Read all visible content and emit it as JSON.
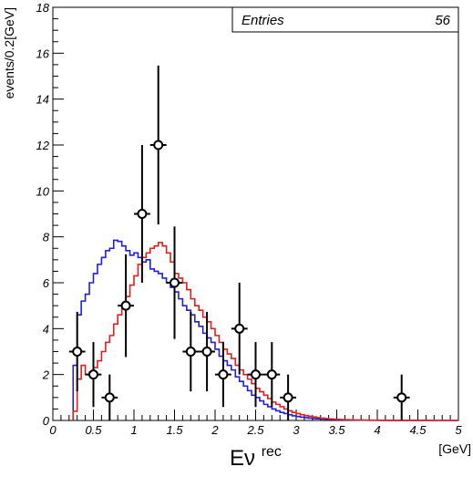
{
  "chart_data": {
    "type": "histogram",
    "xlabel_main": "Eν",
    "xlabel_sup": "rec",
    "xunit": "[GeV]",
    "ylabel": "events/0.2[GeV]",
    "xlim": [
      0,
      5
    ],
    "ylim": [
      0,
      18
    ],
    "x_ticks": [
      0,
      0.5,
      1,
      1.5,
      2,
      2.5,
      3,
      3.5,
      4,
      4.5,
      5
    ],
    "x_tick_labels": [
      "0",
      "0.5",
      "1",
      "1.5",
      "2",
      "2.5",
      "3",
      "3.5",
      "4",
      "4.5",
      "5"
    ],
    "y_ticks": [
      0,
      2,
      4,
      6,
      8,
      10,
      12,
      14,
      16,
      18
    ],
    "y_tick_labels": [
      "0",
      "2",
      "4",
      "6",
      "8",
      "10",
      "12",
      "14",
      "16",
      "18"
    ],
    "grid": false,
    "stats_box": {
      "label": "Entries",
      "value": "56"
    },
    "data_points": {
      "x": [
        0.3,
        0.5,
        0.7,
        0.9,
        1.1,
        1.3,
        1.5,
        1.7,
        1.9,
        2.1,
        2.3,
        2.5,
        2.7,
        2.9,
        4.3
      ],
      "y": [
        3,
        2,
        1,
        5,
        9,
        12,
        6,
        3,
        3,
        2,
        4,
        2,
        2,
        1,
        1
      ],
      "xerr": 0.1,
      "color": "#000000"
    },
    "series": [
      {
        "color": "#1f1fdc",
        "bin_width": 0.05,
        "x": [
          0.25,
          0.3,
          0.35,
          0.4,
          0.45,
          0.5,
          0.55,
          0.6,
          0.65,
          0.7,
          0.75,
          0.8,
          0.85,
          0.9,
          0.95,
          1.0,
          1.05,
          1.1,
          1.15,
          1.2,
          1.25,
          1.3,
          1.35,
          1.4,
          1.45,
          1.5,
          1.55,
          1.6,
          1.65,
          1.7,
          1.75,
          1.8,
          1.85,
          1.9,
          1.95,
          2.0,
          2.05,
          2.1,
          2.15,
          2.2,
          2.25,
          2.3,
          2.35,
          2.4,
          2.45,
          2.5,
          2.55,
          2.6,
          2.65,
          2.7,
          2.75,
          2.8,
          2.85,
          2.9,
          2.95,
          3.0,
          3.05,
          3.1,
          3.15,
          3.2,
          3.25,
          3.3,
          3.35,
          3.4,
          3.45,
          3.5,
          3.55,
          3.6,
          3.65,
          3.7,
          3.75,
          3.8,
          3.85,
          3.9,
          3.95,
          4.0,
          4.05,
          4.1,
          4.15,
          4.2,
          4.25,
          4.3,
          4.35,
          4.4,
          4.45,
          4.5,
          4.55,
          4.6,
          4.65,
          4.7,
          4.75,
          4.8,
          4.85,
          4.9,
          4.95
        ],
        "y": [
          2.4,
          4.6,
          5.2,
          5.5,
          6.0,
          6.4,
          6.8,
          7.1,
          7.4,
          7.5,
          7.85,
          7.8,
          7.6,
          7.4,
          7.2,
          7.3,
          7.1,
          6.9,
          7.0,
          6.6,
          6.5,
          6.4,
          6.2,
          6.0,
          5.8,
          5.6,
          5.3,
          5.0,
          4.8,
          4.6,
          4.3,
          4.1,
          3.8,
          3.6,
          3.4,
          3.1,
          2.8,
          2.6,
          2.4,
          2.2,
          1.9,
          1.7,
          1.5,
          1.3,
          1.1,
          1.0,
          0.85,
          0.7,
          0.6,
          0.5,
          0.42,
          0.35,
          0.3,
          0.25,
          0.2,
          0.17,
          0.14,
          0.12,
          0.1,
          0.08,
          0.07,
          0.06,
          0.05,
          0.04,
          0.035,
          0.03,
          0.025,
          0.02,
          0.02,
          0.015,
          0.012,
          0.01,
          0.01,
          0.008,
          0.006,
          0.005,
          0.004,
          0.003,
          0.003,
          0.002,
          0.002,
          0.002,
          0.001,
          0.001,
          0.001,
          0.001,
          0.001,
          0.0,
          0.0,
          0.0,
          0.0,
          0.0,
          0.0,
          0.0,
          0.0
        ]
      },
      {
        "color": "#dc1f1f",
        "bin_width": 0.05,
        "x": [
          0.25,
          0.3,
          0.35,
          0.4,
          0.45,
          0.5,
          0.55,
          0.6,
          0.65,
          0.7,
          0.75,
          0.8,
          0.85,
          0.9,
          0.95,
          1.0,
          1.05,
          1.1,
          1.15,
          1.2,
          1.25,
          1.3,
          1.35,
          1.4,
          1.45,
          1.5,
          1.55,
          1.6,
          1.65,
          1.7,
          1.75,
          1.8,
          1.85,
          1.9,
          1.95,
          2.0,
          2.05,
          2.1,
          2.15,
          2.2,
          2.25,
          2.3,
          2.35,
          2.4,
          2.45,
          2.5,
          2.55,
          2.6,
          2.65,
          2.7,
          2.75,
          2.8,
          2.85,
          2.9,
          2.95,
          3.0,
          3.05,
          3.1,
          3.15,
          3.2,
          3.25,
          3.3,
          3.35,
          3.4,
          3.45,
          3.5,
          3.55,
          3.6,
          3.65,
          3.7,
          3.75,
          3.8,
          3.85,
          3.9,
          3.95,
          4.0,
          4.05,
          4.1,
          4.15,
          4.2,
          4.25,
          4.3,
          4.35,
          4.4,
          4.45,
          4.5,
          4.55,
          4.6,
          4.65,
          4.7,
          4.75,
          4.8,
          4.85,
          4.9,
          4.95
        ],
        "y": [
          0.4,
          1.8,
          2.4,
          2.0,
          2.1,
          2.3,
          2.6,
          3.0,
          3.4,
          3.7,
          4.2,
          4.6,
          5.0,
          5.4,
          5.9,
          6.3,
          6.8,
          7.1,
          7.3,
          7.5,
          7.6,
          7.75,
          7.6,
          7.3,
          6.9,
          6.4,
          6.2,
          6.0,
          5.7,
          5.3,
          5.0,
          4.8,
          4.5,
          4.3,
          4.0,
          3.7,
          3.4,
          3.1,
          2.9,
          2.7,
          2.4,
          2.2,
          2.0,
          1.8,
          1.6,
          1.4,
          1.25,
          1.1,
          0.95,
          0.8,
          0.7,
          0.6,
          0.5,
          0.42,
          0.35,
          0.3,
          0.25,
          0.21,
          0.18,
          0.15,
          0.12,
          0.1,
          0.08,
          0.07,
          0.06,
          0.05,
          0.04,
          0.035,
          0.03,
          0.025,
          0.02,
          0.018,
          0.015,
          0.012,
          0.01,
          0.008,
          0.007,
          0.006,
          0.005,
          0.004,
          0.003,
          0.003,
          0.002,
          0.002,
          0.002,
          0.001,
          0.001,
          0.001,
          0.001,
          0.0,
          0.0,
          0.0,
          0.0,
          0.0,
          0.0
        ]
      }
    ]
  }
}
